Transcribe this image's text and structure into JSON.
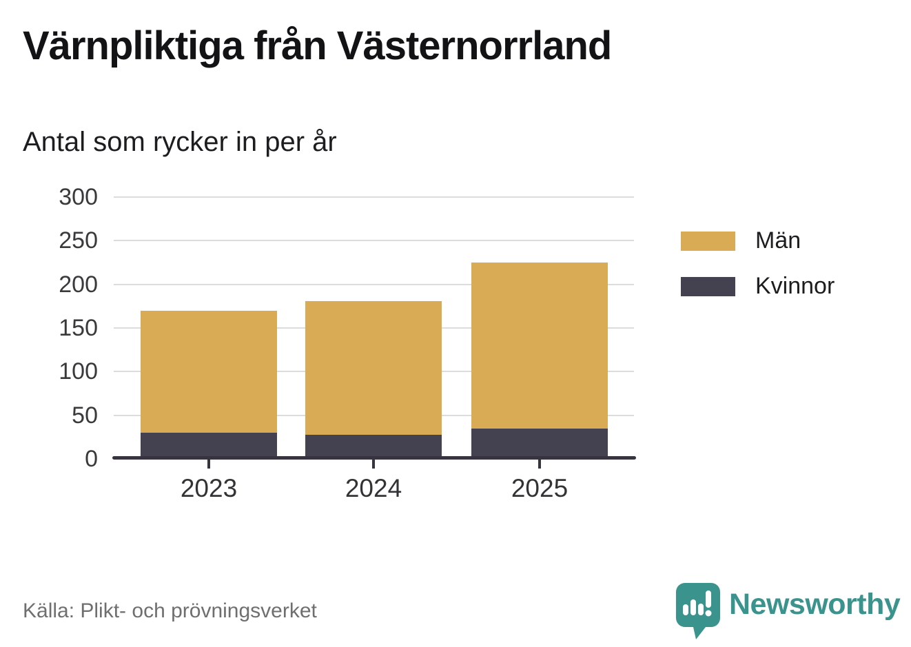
{
  "header": {
    "title": "Värnpliktiga från Västernorrland",
    "subtitle": "Antal som rycker in per år"
  },
  "footer": {
    "source": "Källa: Plikt- och prövningsverket",
    "brand_name": "Newsworthy",
    "brand_icon": "speech-bubble-bar-chart-icon"
  },
  "colors": {
    "men_gold": "#d9ab55",
    "women_dark": "#444150",
    "gridline": "#dcdcdc",
    "axis": "#37343f",
    "brand_teal": "#3a948d",
    "source_gray": "#6f6f6f",
    "title_black": "#131316"
  },
  "chart_data": {
    "type": "bar",
    "stacked": true,
    "title": "Värnpliktiga från Västernorrland",
    "subtitle": "Antal som rycker in per år",
    "categories": [
      "2023",
      "2024",
      "2025"
    ],
    "series": [
      {
        "name": "Män",
        "color": "#d9ab55",
        "values": [
          140,
          153,
          190
        ]
      },
      {
        "name": "Kvinnor",
        "color": "#444150",
        "values": [
          30,
          28,
          35
        ]
      }
    ],
    "stack_bottom_to_top": [
      "Kvinnor",
      "Män"
    ],
    "stacked_totals": [
      170,
      181,
      225
    ],
    "xlabel": "",
    "ylabel": "",
    "ylim": [
      0,
      300
    ],
    "yticks": [
      0,
      50,
      100,
      150,
      200,
      250,
      300
    ],
    "grid": "horizontal",
    "legend_position": "right"
  }
}
